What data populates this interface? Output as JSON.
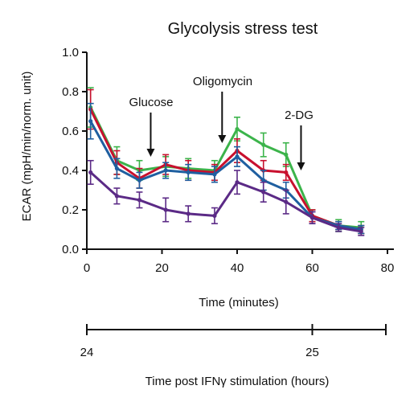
{
  "chart_data": {
    "type": "line",
    "title": "Glycolysis stress test",
    "xlabel": "Time (minutes)",
    "ylabel": "ECAR (mpH/min/norm. unit)",
    "xlim": [
      0,
      80
    ],
    "ylim": [
      0,
      1.0
    ],
    "xticks": [
      0,
      20,
      40,
      60,
      80
    ],
    "xtick_labels": [
      "0",
      "20",
      "40",
      "60",
      "80"
    ],
    "yticks": [
      0,
      0.2,
      0.4,
      0.6,
      0.8,
      1.0
    ],
    "ytick_labels": [
      "0.0",
      "0.2",
      "0.4",
      "0.6",
      "0.8",
      "1.0"
    ],
    "grid": false,
    "x": [
      1,
      8,
      14,
      21,
      27,
      34,
      40,
      47,
      53,
      60,
      67,
      73
    ],
    "series": [
      {
        "color": "#3cb44b",
        "values": [
          0.72,
          0.45,
          0.4,
          0.42,
          0.41,
          0.4,
          0.61,
          0.53,
          0.48,
          0.17,
          0.12,
          0.11
        ],
        "errors": [
          0.1,
          0.07,
          0.05,
          0.05,
          0.05,
          0.05,
          0.06,
          0.06,
          0.06,
          0.03,
          0.03,
          0.03
        ]
      },
      {
        "color": "#c8102e",
        "values": [
          0.71,
          0.44,
          0.36,
          0.43,
          0.4,
          0.39,
          0.5,
          0.4,
          0.39,
          0.17,
          0.12,
          0.1
        ],
        "errors": [
          0.1,
          0.06,
          0.05,
          0.05,
          0.05,
          0.04,
          0.06,
          0.05,
          0.04,
          0.03,
          0.02,
          0.02
        ]
      },
      {
        "color": "#1f5fa0",
        "values": [
          0.65,
          0.41,
          0.35,
          0.4,
          0.39,
          0.38,
          0.47,
          0.35,
          0.3,
          0.16,
          0.12,
          0.1
        ],
        "errors": [
          0.09,
          0.05,
          0.04,
          0.04,
          0.04,
          0.04,
          0.05,
          0.05,
          0.04,
          0.03,
          0.02,
          0.02
        ]
      },
      {
        "color": "#5b2a86",
        "values": [
          0.39,
          0.27,
          0.25,
          0.2,
          0.18,
          0.17,
          0.34,
          0.29,
          0.24,
          0.16,
          0.11,
          0.09
        ],
        "errors": [
          0.06,
          0.04,
          0.04,
          0.06,
          0.04,
          0.04,
          0.06,
          0.05,
          0.06,
          0.03,
          0.02,
          0.02
        ]
      }
    ],
    "annotations": [
      {
        "text": "Glucose",
        "arrow_x": 17
      },
      {
        "text": "Oligomycin",
        "arrow_x": 36
      },
      {
        "text": "2-DG",
        "arrow_x": 57
      }
    ],
    "secondary_axis": {
      "label": "Time post IFNγ stimulation (hours)",
      "tick_labels": [
        "24",
        "25"
      ],
      "tick_minutes": [
        0,
        60
      ]
    }
  }
}
